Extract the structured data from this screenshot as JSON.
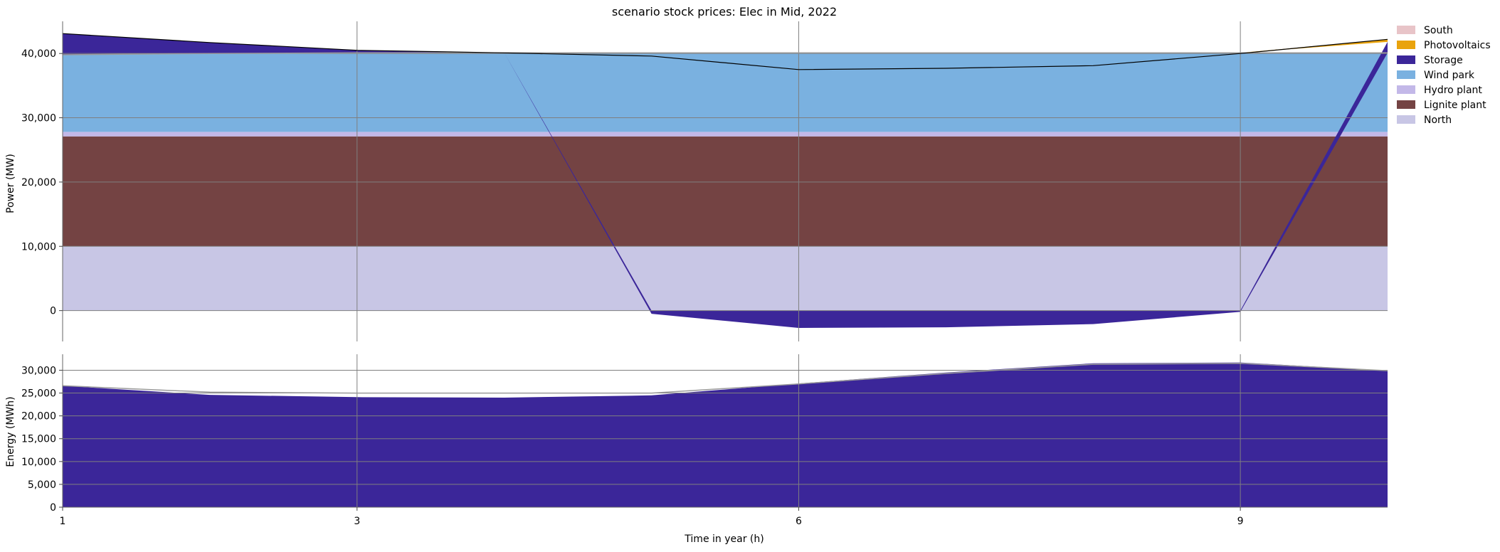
{
  "chart_data": [
    {
      "type": "area",
      "title": "scenario stock prices: Elec in Mid, 2022",
      "xlabel": "",
      "ylabel": "Power (MW)",
      "ylim": [
        -4800,
        45000
      ],
      "xlim": [
        1,
        10
      ],
      "x": [
        1,
        2,
        3,
        4,
        5,
        6,
        7,
        8,
        9,
        10
      ],
      "x_ticks": [
        "1",
        "3",
        "6",
        "9"
      ],
      "y_ticks": [
        "0",
        "10,000",
        "20,000",
        "30,000",
        "40,000"
      ],
      "grid": true,
      "legend_position": "outside-top-right",
      "stack_order": [
        "North",
        "Lignite plant",
        "Hydro plant",
        "Wind park",
        "Storage",
        "Photovoltaics",
        "South"
      ],
      "legend_order": [
        "South",
        "Photovoltaics",
        "Storage",
        "Wind park",
        "Hydro plant",
        "Lignite plant",
        "North"
      ],
      "series": [
        {
          "name": "North",
          "color": "#c8c6e5",
          "values": [
            10000,
            10000,
            10000,
            10000,
            10000,
            10000,
            10000,
            10000,
            10000,
            10000
          ]
        },
        {
          "name": "Lignite plant",
          "color": "#744343",
          "values": [
            17100,
            17100,
            17100,
            17100,
            17100,
            17100,
            17100,
            17100,
            17100,
            17100
          ]
        },
        {
          "name": "Hydro plant",
          "color": "#c3b8e8",
          "values": [
            700,
            700,
            700,
            700,
            700,
            700,
            700,
            700,
            700,
            700
          ]
        },
        {
          "name": "Wind park",
          "color": "#7ab1e0",
          "values": [
            12000,
            12200,
            12300,
            12300,
            12300,
            12300,
            12300,
            12300,
            12300,
            12300
          ]
        },
        {
          "name": "Storage",
          "color": "#3b2699",
          "values": [
            3300,
            1700,
            400,
            0,
            -500,
            -2700,
            -2600,
            -2100,
            -200,
            1700
          ]
        },
        {
          "name": "Photovoltaics",
          "color": "#e9a30c",
          "values": [
            0,
            0,
            0,
            0,
            0,
            0,
            0,
            0,
            0,
            400
          ]
        },
        {
          "name": "South",
          "color": "#e8c4c8",
          "values": [
            0,
            0,
            0,
            0,
            0,
            0,
            0,
            0,
            0,
            0
          ]
        }
      ],
      "total_line": [
        43100,
        41700,
        40500,
        40100,
        39600,
        37500,
        37700,
        38100,
        40000,
        42200
      ],
      "reference_line": [
        39800,
        40000,
        40100,
        40100,
        40100,
        40100,
        40100,
        40100,
        40100,
        40100
      ]
    },
    {
      "type": "area",
      "title": "",
      "xlabel": "Time in year (h)",
      "ylabel": "Energy (MWh)",
      "ylim": [
        0,
        33500
      ],
      "xlim": [
        1,
        10
      ],
      "x": [
        1,
        2,
        3,
        4,
        5,
        6,
        7,
        8,
        9,
        10
      ],
      "x_ticks": [
        "1",
        "3",
        "6",
        "9"
      ],
      "y_ticks": [
        "0",
        "5,000",
        "10,000",
        "15,000",
        "20,000",
        "25,000",
        "30,000"
      ],
      "grid": true,
      "series": [
        {
          "name": "Storage",
          "color": "#3b2699",
          "values": [
            26600,
            24600,
            24100,
            24000,
            24500,
            27100,
            29500,
            31500,
            31700,
            29900
          ]
        }
      ],
      "reference_line": [
        26600,
        25200,
        25000,
        25000,
        25000,
        27000,
        29300,
        31300,
        31500,
        29900
      ]
    }
  ]
}
